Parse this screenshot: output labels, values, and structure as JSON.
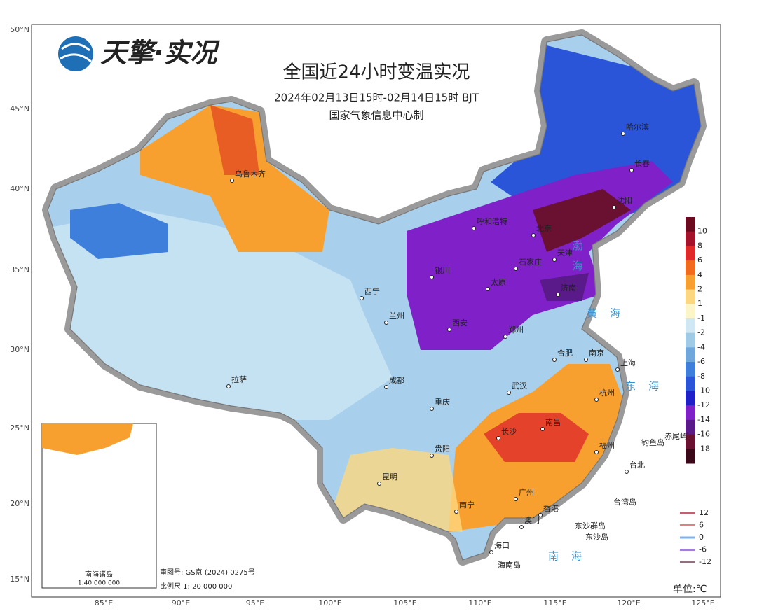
{
  "logo": {
    "text": "天擎·实况"
  },
  "header": {
    "title": "全国近24小时变温实况",
    "subtitle": "2024年02月13日15时-02月14日15时 BJT",
    "producer": "国家气象信息中心制"
  },
  "axes": {
    "lat_labels": [
      "50°N",
      "45°N",
      "40°N",
      "35°N",
      "30°N",
      "25°N",
      "20°N",
      "15°N"
    ],
    "lon_labels": [
      "85°E",
      "90°E",
      "95°E",
      "100°E",
      "105°E",
      "110°E",
      "115°E",
      "120°E",
      "125°E"
    ]
  },
  "colorbar": {
    "labels": [
      10,
      8,
      6,
      4,
      2,
      1,
      -1,
      -2,
      -4,
      -6,
      -8,
      -10,
      -12,
      -14,
      -16,
      -18
    ]
  },
  "line_legend": {
    "labels": [
      12,
      6,
      0,
      -6,
      -12
    ]
  },
  "unit": "单位:℃",
  "cities": [
    "乌鲁木齐",
    "哈尔滨",
    "长春",
    "沈阳",
    "呼和浩特",
    "北京",
    "天津",
    "石家庄",
    "太原",
    "济南",
    "银川",
    "西宁",
    "兰州",
    "西安",
    "郑州",
    "合肥",
    "南京",
    "上海",
    "杭州",
    "武汉",
    "成都",
    "重庆",
    "拉萨",
    "长沙",
    "南昌",
    "福州",
    "台北",
    "贵阳",
    "昆明",
    "南宁",
    "广州",
    "香港",
    "澳门",
    "海口",
    "海南岛",
    "台湾岛",
    "钓鱼岛",
    "赤尾屿",
    "东沙群岛",
    "东沙岛"
  ],
  "seas": [
    "渤海",
    "黄海",
    "东海",
    "南海"
  ],
  "inset": {
    "title": "南海诸岛",
    "scale": "1:40 000 000"
  },
  "footer": {
    "review": "审图号: GS京 (2024) 0275号",
    "scale": "比例尺 1: 20 000 000"
  }
}
